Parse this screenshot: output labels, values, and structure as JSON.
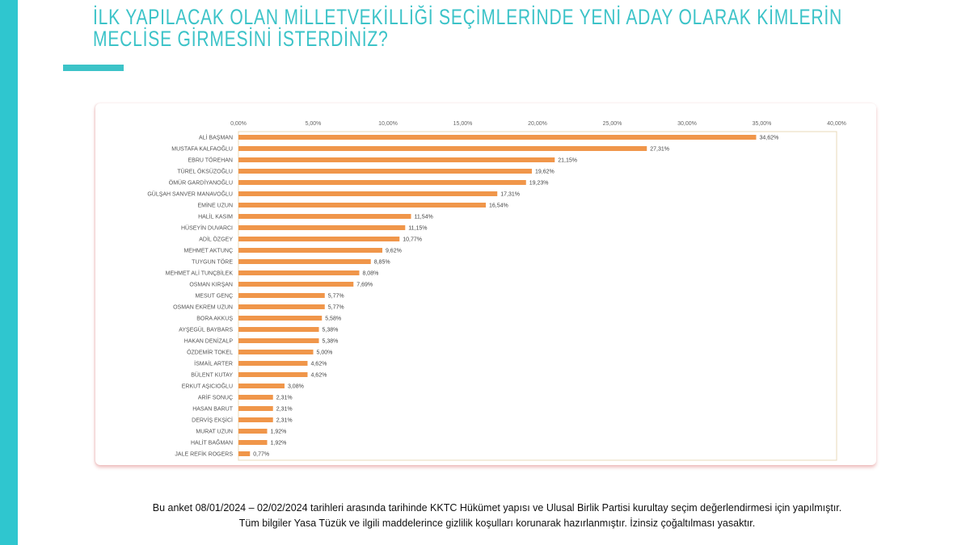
{
  "title_lines": [
    "İLK YAPILACAK OLAN MİLLETVEKİLLİĞİ SEÇİMLERİNDE YENİ ADAY OLARAK KİMLERİN",
    "MECLİSE GİRMESİNİ İSTERDİNİZ?"
  ],
  "colors": {
    "accent": "#3cc3c8",
    "bar": "#f0964a"
  },
  "chart_data": {
    "type": "bar",
    "orientation": "horizontal",
    "categories": [
      "ALİ BAŞMAN",
      "MUSTAFA KALFAOĞLU",
      "EBRU TÖREHAN",
      "TÜREL ÖKSÜZOĞLU",
      "ÖMÜR GARDİYANOĞLU",
      "GÜLŞAH SANVER MANAVOĞLU",
      "EMİNE UZUN",
      "HALİL KASIM",
      "HÜSEYİN DUVARCI",
      "ADİL ÖZGEY",
      "MEHMET AKTUNÇ",
      "TUYGUN TÖRE",
      "MEHMET ALİ TUNÇBİLEK",
      "OSMAN KIRŞAN",
      "MESUT GENÇ",
      "OSMAN EKREM UZUN",
      "BORA AKKUŞ",
      "AYŞEGÜL BAYBARS",
      "HAKAN DENİZALP",
      "ÖZDEMİR TOKEL",
      "İSMAİL ARTER",
      "BÜLENT KUTAY",
      "ERKUT AŞICIOĞLU",
      "ARİF SONUÇ",
      "HASAN BARUT",
      "DERVİŞ EKŞİCİ",
      "MURAT UZUN",
      "HALİT BAĞMAN",
      "JALE REFİK ROGERS"
    ],
    "values": [
      34.62,
      27.31,
      21.15,
      19.62,
      19.23,
      17.31,
      16.54,
      11.54,
      11.15,
      10.77,
      9.62,
      8.85,
      8.08,
      7.69,
      5.77,
      5.77,
      5.58,
      5.38,
      5.38,
      5.0,
      4.62,
      4.62,
      3.08,
      2.31,
      2.31,
      2.31,
      1.92,
      1.92,
      0.77
    ],
    "data_labels": [
      "34,62%",
      "27,31%",
      "21,15%",
      "19,62%",
      "19,23%",
      "17,31%",
      "16,54%",
      "11,54%",
      "11,15%",
      "10,77%",
      "9,62%",
      "8,85%",
      "8,08%",
      "7,69%",
      "5,77%",
      "5,77%",
      "5,58%",
      "5,38%",
      "5,38%",
      "5,00%",
      "4,62%",
      "4,62%",
      "3,08%",
      "2,31%",
      "2,31%",
      "2,31%",
      "1,92%",
      "1,92%",
      "0,77%"
    ],
    "x_ticks": [
      0,
      5,
      10,
      15,
      20,
      25,
      30,
      35,
      40
    ],
    "x_tick_labels": [
      "0,00%",
      "5,00%",
      "10,00%",
      "15,00%",
      "20,00%",
      "25,00%",
      "30,00%",
      "35,00%",
      "40,00%"
    ],
    "xlim": [
      0,
      40
    ],
    "x_axis_position": "top",
    "grid": false,
    "legend": "none"
  },
  "footer": {
    "line1": "Bu anket 08/01/2024 – 02/02/2024 tarihleri arasında tarihinde KKTC Hükümet yapısı ve Ulusal Birlik Partisi kurultay seçim değerlendirmesi için yapılmıştır.",
    "line2": "Tüm bilgiler Yasa Tüzük ve ilgili maddelerince gizlilik koşulları korunarak hazırlanmıştır.  İzinsiz çoğaltılması yasaktır."
  }
}
